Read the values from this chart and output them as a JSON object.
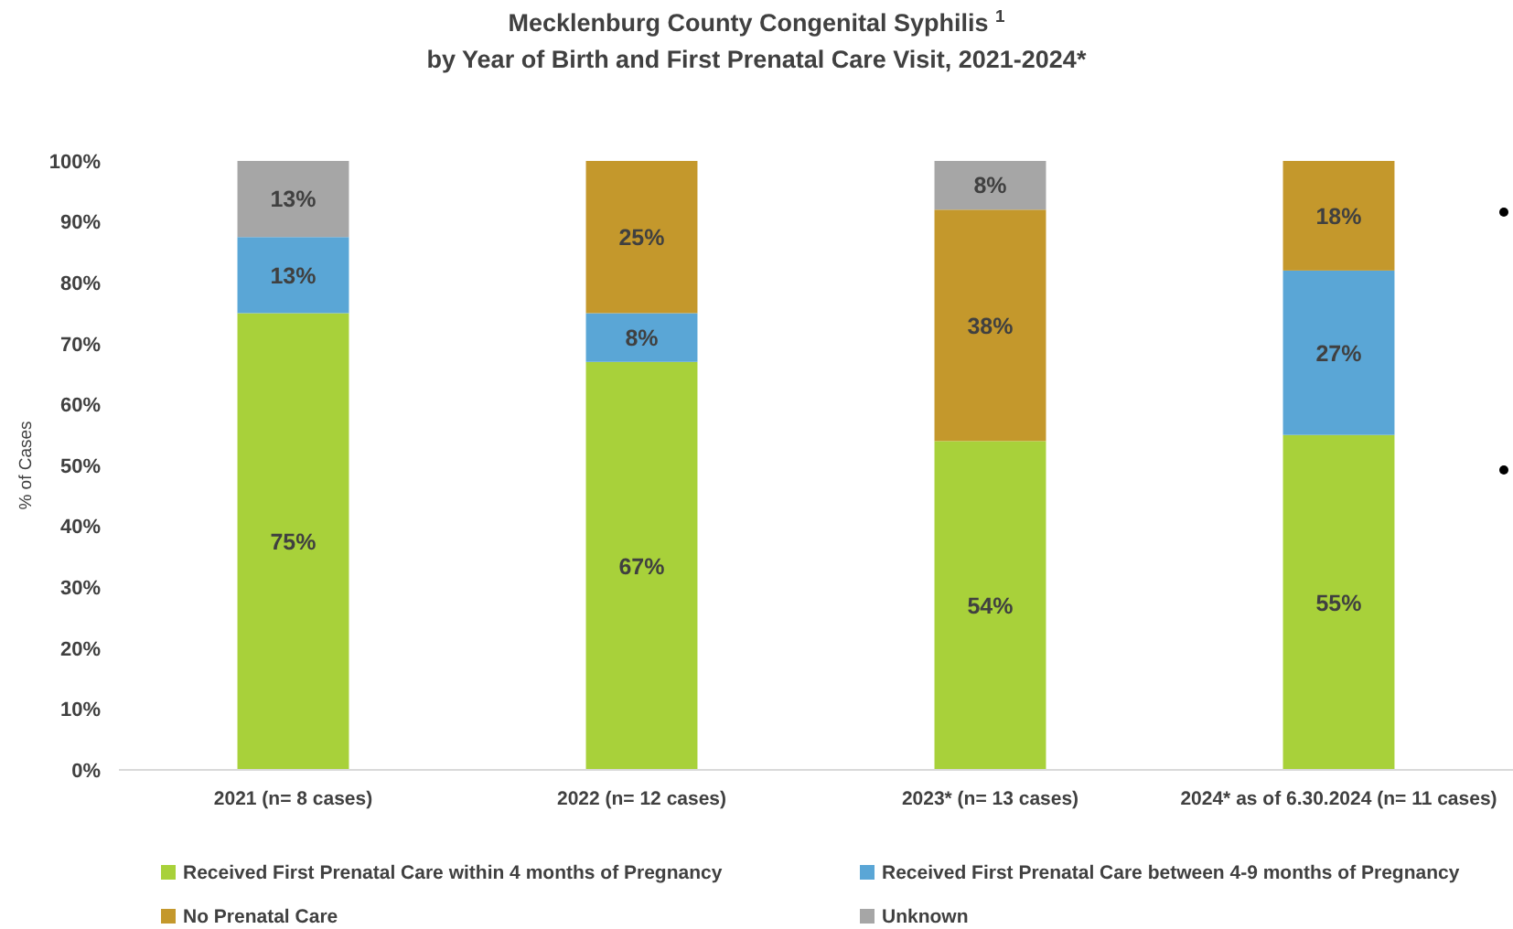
{
  "chart_data": {
    "type": "bar",
    "stacked": true,
    "title": "Mecklenburg County Congenital Syphilis $^{1}$\nby Year of Birth and First Prenatal Care Visit, 2021-2024*",
    "ylabel": "% of Cases",
    "categories": [
      "2021 (n= 8 cases)",
      "2022 (n= 12 cases)",
      "2023* (n= 13 cases)",
      "2024* as of 6.30.2024 (n= 11 cases)"
    ],
    "series": [
      {
        "name": "Received First Prenatal Care within 4 months of Pregnancy",
        "color": "#a8d13a",
        "values": [
          75,
          67,
          54,
          55
        ],
        "value_labels": [
          "75%",
          "67%",
          "54%",
          "55%"
        ]
      },
      {
        "name": "Received First Prenatal Care between 4-9 months of Pregnancy",
        "color": "#5aa6d6",
        "values": [
          12.5,
          8,
          null,
          27
        ],
        "value_labels": [
          "13%",
          "8%",
          null,
          "27%"
        ]
      },
      {
        "name": "No Prenatal Care",
        "color": "#c4982c",
        "values": [
          null,
          25,
          38,
          18
        ],
        "value_labels": [
          null,
          "25%",
          "38%",
          "18%"
        ]
      },
      {
        "name": "Unknown",
        "color": "#a6a6a6",
        "values": [
          12.5,
          null,
          8,
          null
        ],
        "value_labels": [
          "13%",
          null,
          "8%",
          null
        ]
      }
    ],
    "ylim": [
      0,
      100
    ],
    "yticks": [
      {
        "value": 0,
        "label": "0%"
      },
      {
        "value": 10,
        "label": "10%"
      },
      {
        "value": 20,
        "label": "20%"
      },
      {
        "value": 30,
        "label": "30%"
      },
      {
        "value": 40,
        "label": "40%"
      },
      {
        "value": 50,
        "label": "50%"
      },
      {
        "value": 60,
        "label": "60%"
      },
      {
        "value": 70,
        "label": "70%"
      },
      {
        "value": 80,
        "label": "80%"
      },
      {
        "value": 90,
        "label": "90%"
      },
      {
        "value": 100,
        "label": "100%"
      }
    ],
    "legend": "bottom"
  }
}
